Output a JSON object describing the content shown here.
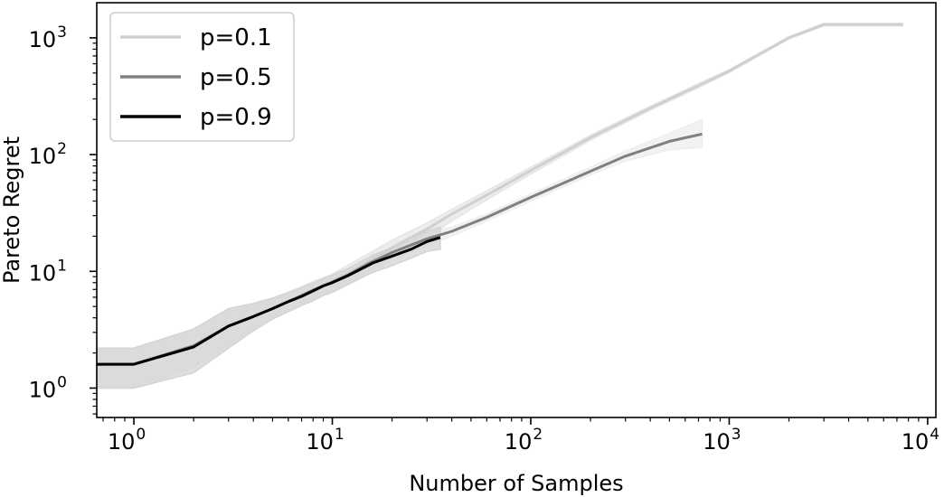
{
  "chart_data": {
    "type": "line",
    "title": "",
    "xlabel": "Number of Samples",
    "ylabel": "Pareto Regret",
    "xscale": "log",
    "yscale": "log",
    "xlim": [
      0.65,
      11000
    ],
    "ylim": [
      0.56,
      2000
    ],
    "grid": false,
    "legend_position": "top-left",
    "x_tick_labels": [
      {
        "base": "10",
        "exp": "0"
      },
      {
        "base": "10",
        "exp": "1"
      },
      {
        "base": "10",
        "exp": "2"
      },
      {
        "base": "10",
        "exp": "3"
      },
      {
        "base": "10",
        "exp": "4"
      }
    ],
    "y_tick_labels": [
      {
        "base": "10",
        "exp": "0"
      },
      {
        "base": "10",
        "exp": "1"
      },
      {
        "base": "10",
        "exp": "2"
      },
      {
        "base": "10",
        "exp": "3"
      }
    ],
    "series": [
      {
        "name": "p=0.1",
        "color": "#d0d0d0",
        "band_color": "#e6e6e6",
        "x": [
          0.65,
          1,
          2,
          3,
          4,
          5,
          6,
          7,
          8,
          9,
          10,
          12,
          15,
          20,
          30,
          40,
          60,
          100,
          200,
          400,
          700,
          1000,
          2000,
          3000,
          3700,
          7500
        ],
        "y": [
          1.6,
          1.6,
          2.3,
          3.4,
          4.1,
          4.8,
          5.5,
          6.2,
          7.0,
          7.6,
          8.2,
          9.6,
          12,
          16,
          23,
          31,
          45,
          73,
          140,
          250,
          390,
          520,
          1000,
          1300,
          1300,
          1300
        ],
        "lower": [
          1.0,
          1.0,
          1.5,
          2.3,
          3.2,
          4.0,
          4.6,
          5.2,
          5.8,
          6.3,
          6.8,
          8.0,
          10,
          13.5,
          19.5,
          27,
          41,
          68,
          133,
          240,
          375,
          505,
          980,
          1270,
          1270,
          1270
        ],
        "upper": [
          2.2,
          2.2,
          3.2,
          4.8,
          5.3,
          5.9,
          6.6,
          7.4,
          8.2,
          8.8,
          9.5,
          11.3,
          14,
          18.5,
          26,
          34,
          49,
          78,
          147,
          260,
          405,
          535,
          1025,
          1330,
          1330,
          1330
        ]
      },
      {
        "name": "p=0.5",
        "color": "#808080",
        "band_color": "#eeeeee",
        "x": [
          0.65,
          1,
          2,
          3,
          4,
          5,
          6,
          7,
          8,
          9,
          10,
          12,
          15,
          20,
          30,
          40,
          60,
          100,
          200,
          300,
          500,
          730
        ],
        "y": [
          1.6,
          1.6,
          2.3,
          3.4,
          4.1,
          4.8,
          5.5,
          6.2,
          6.9,
          7.5,
          8.1,
          9.3,
          11.5,
          14.5,
          19,
          22,
          29,
          43,
          72,
          97,
          130,
          150
        ],
        "lower": [
          1.0,
          1.0,
          1.5,
          2.3,
          3.2,
          4.0,
          4.6,
          5.2,
          5.8,
          6.3,
          6.8,
          7.9,
          9.8,
          12.5,
          16.8,
          20,
          27,
          40,
          67,
          88,
          110,
          115
        ],
        "upper": [
          2.2,
          2.2,
          3.2,
          4.8,
          5.3,
          5.9,
          6.6,
          7.4,
          8.1,
          8.7,
          9.4,
          10.8,
          13.3,
          16.8,
          21.5,
          24,
          31,
          46,
          78,
          107,
          152,
          200
        ]
      },
      {
        "name": "p=0.9",
        "color": "#000000",
        "band_color": "#d4d4d4",
        "x": [
          0.65,
          1,
          2,
          3,
          4,
          5,
          6,
          7,
          8,
          9,
          10,
          12,
          14,
          16,
          20,
          25,
          30,
          35
        ],
        "y": [
          1.6,
          1.6,
          2.25,
          3.4,
          4.1,
          4.8,
          5.5,
          6.1,
          6.8,
          7.5,
          8.0,
          9.2,
          10.5,
          11.8,
          13.5,
          15.5,
          18,
          19.5
        ],
        "lower": [
          1.0,
          1.0,
          1.35,
          2.2,
          3.1,
          3.9,
          4.5,
          5.1,
          5.6,
          6.2,
          6.6,
          7.7,
          8.8,
          9.8,
          11.2,
          13,
          14.8,
          15.5
        ],
        "upper": [
          2.2,
          2.2,
          3.2,
          4.8,
          5.3,
          5.9,
          6.6,
          7.3,
          8.0,
          8.7,
          9.3,
          10.6,
          12.2,
          13.8,
          16,
          18.5,
          22,
          24
        ]
      }
    ]
  }
}
